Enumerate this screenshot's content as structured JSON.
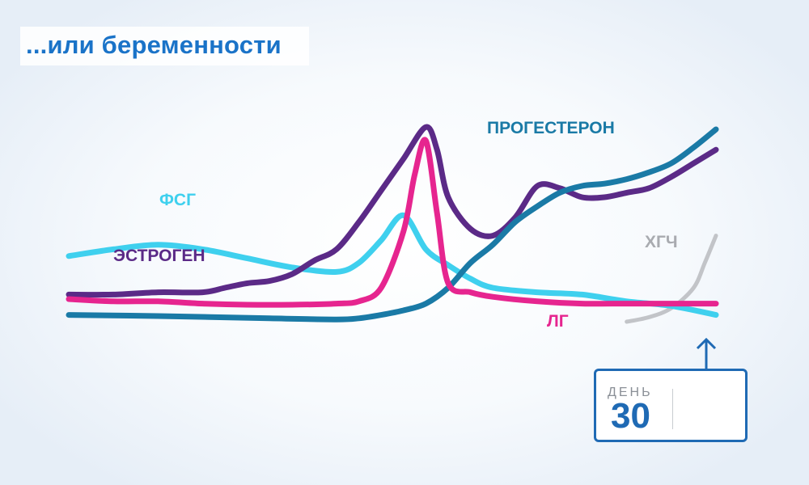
{
  "title": "...или беременности",
  "chart_data": {
    "type": "line",
    "title": "...или беременности",
    "xlabel": "",
    "ylabel": "",
    "grid": false,
    "legend": "inline labels",
    "xlim": [
      1,
      30
    ],
    "ylim": [
      0,
      100
    ],
    "series": [
      {
        "name": "ФСГ",
        "color": "#3fd0ee",
        "x": [
          1,
          3,
          5,
          7,
          9,
          11,
          13,
          14,
          15,
          16,
          17,
          18,
          19,
          20,
          22,
          24,
          26,
          28,
          30
        ],
        "y": [
          29,
          32,
          34,
          32,
          28,
          24,
          22,
          26,
          36,
          47,
          32,
          25,
          19,
          15,
          13,
          12,
          9,
          7,
          3
        ]
      },
      {
        "name": "ЭСТРОГЕН",
        "color": "#5b2a87",
        "x": [
          1,
          3,
          5,
          7,
          8,
          9,
          10,
          11,
          12,
          13,
          14,
          15,
          16,
          17,
          17.5,
          18,
          19,
          20,
          21,
          22,
          23,
          24,
          25,
          26,
          27,
          28,
          29,
          30
        ],
        "y": [
          12,
          12,
          13,
          13,
          15,
          17,
          18,
          21,
          27,
          32,
          44,
          58,
          72,
          86,
          76,
          55,
          41,
          38,
          46,
          60,
          59,
          55,
          55,
          57,
          59,
          64,
          70,
          76
        ]
      },
      {
        "name": "ПРОГЕСТЕРОН",
        "color": "#1a7aa6",
        "x": [
          1,
          5,
          10,
          13,
          14,
          15,
          16,
          17,
          18,
          19,
          20,
          21,
          22,
          23,
          24,
          25,
          26,
          27,
          28,
          29,
          30
        ],
        "y": [
          3,
          2.5,
          1.5,
          1,
          1.5,
          3,
          5,
          8,
          15,
          26,
          34,
          44,
          51,
          57,
          60,
          61,
          63,
          66,
          70,
          77,
          85
        ]
      },
      {
        "name": "ЛГ",
        "color": "#e6258f",
        "x": [
          1,
          3,
          5,
          7,
          9,
          11,
          13,
          14,
          15,
          16,
          16.5,
          17,
          17.5,
          18,
          19,
          20,
          22,
          24,
          26,
          28,
          30
        ],
        "y": [
          10,
          9,
          9,
          8,
          7.5,
          7.5,
          8,
          9,
          15,
          40,
          65,
          80,
          48,
          17,
          13,
          11,
          9,
          8,
          8,
          8,
          8
        ]
      },
      {
        "name": "ХГЧ",
        "color": "#c2c4c8",
        "x": [
          26,
          27,
          28,
          29,
          29.5,
          30
        ],
        "y": [
          0,
          2,
          6,
          15,
          26,
          38
        ]
      }
    ],
    "marker": {
      "day_label": "ДЕНЬ",
      "day": "30"
    }
  }
}
